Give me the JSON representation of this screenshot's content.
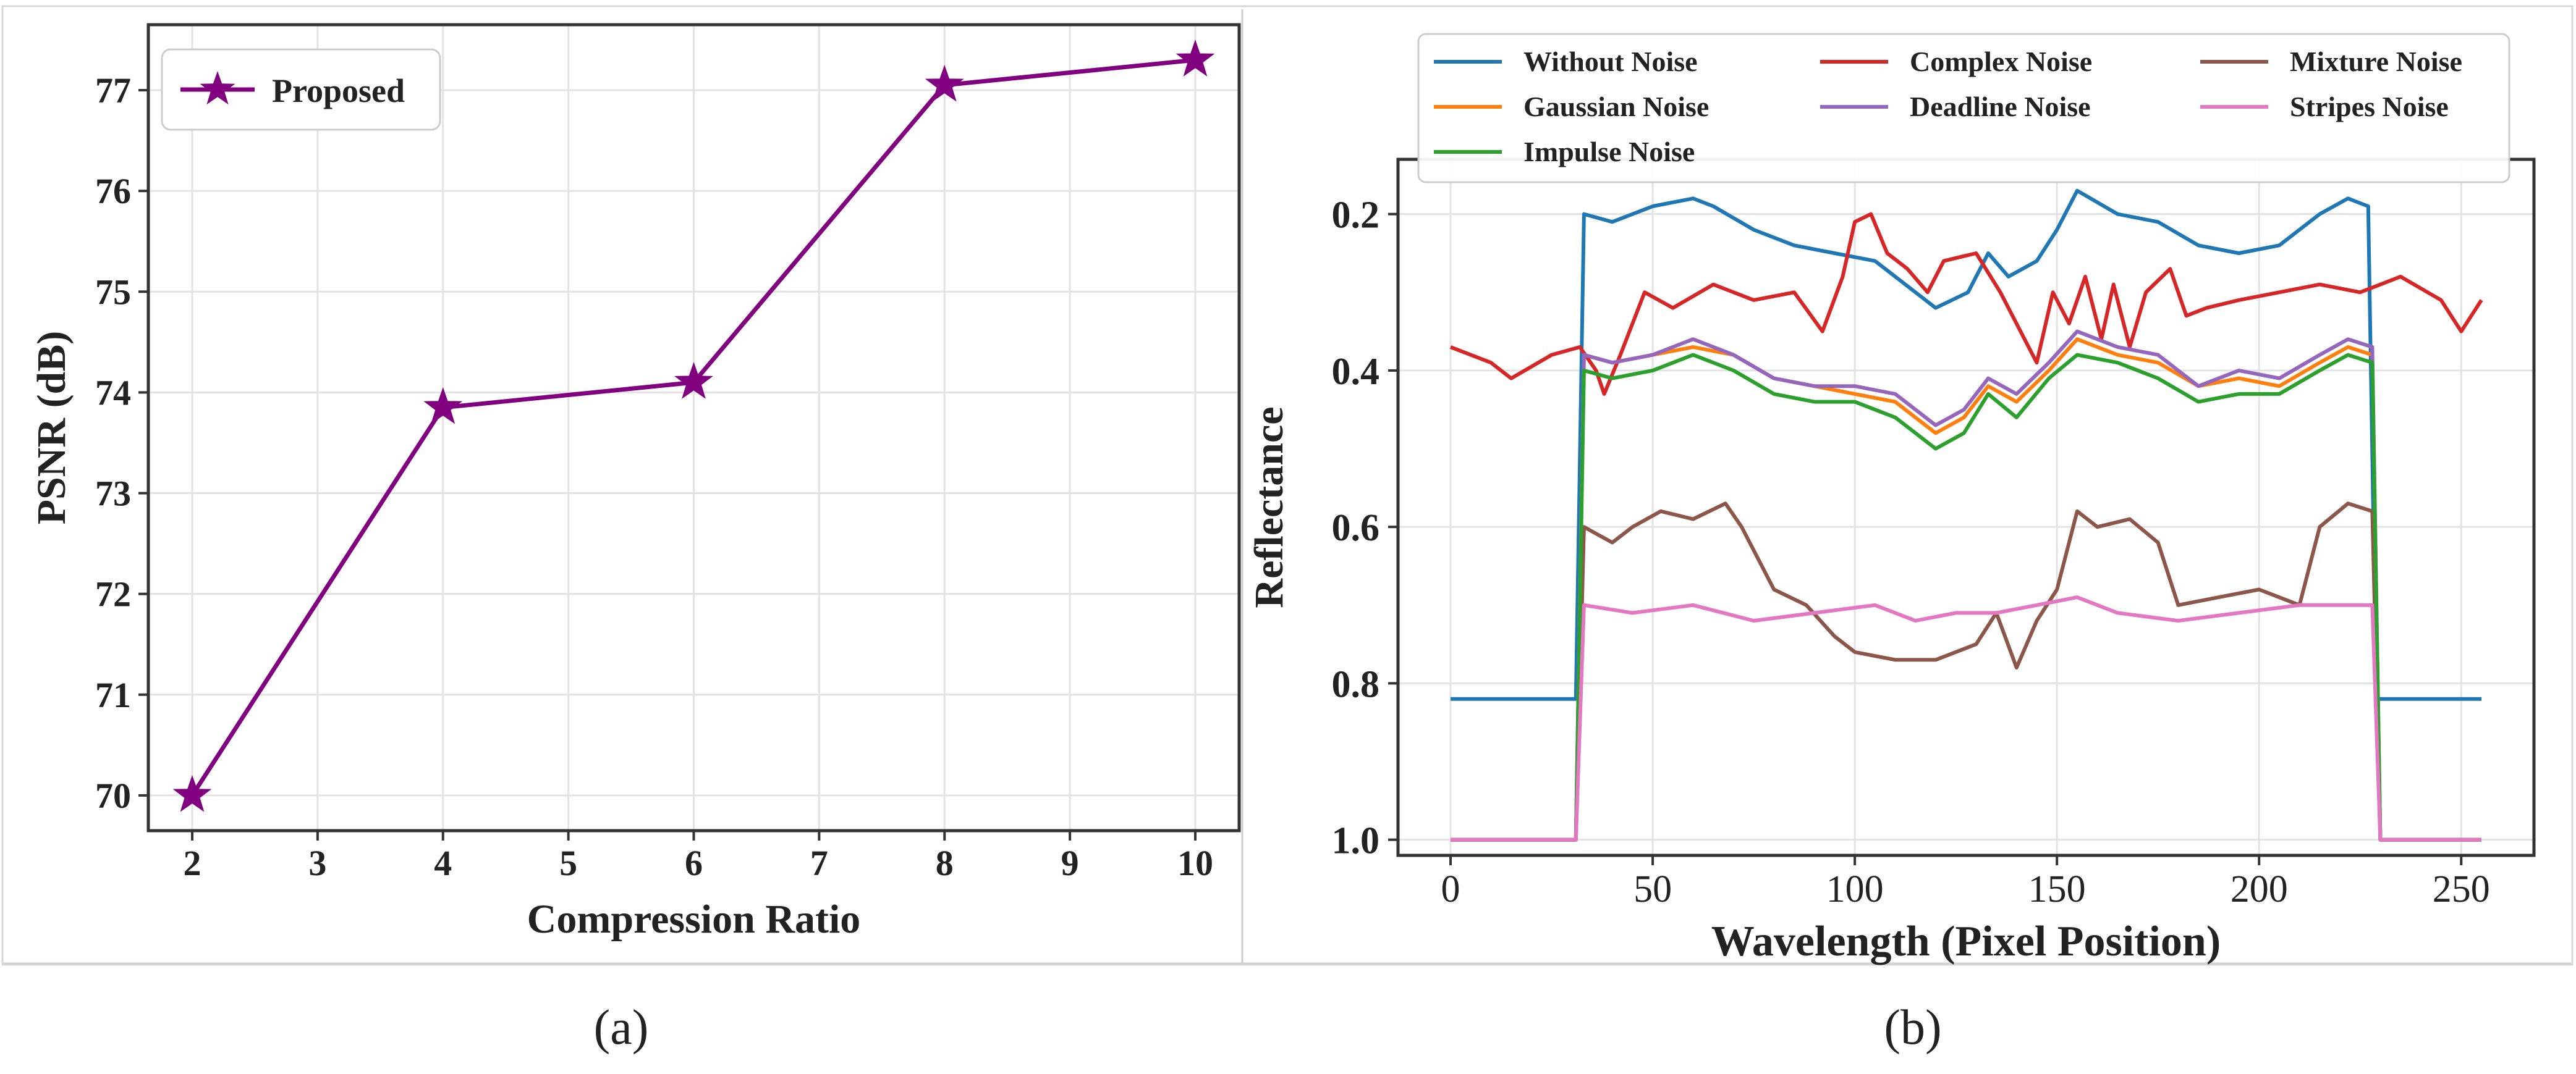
{
  "captions": {
    "a": "(a)",
    "b": "(b)"
  },
  "chart_data": [
    {
      "type": "line",
      "title": "",
      "xlabel": "Compression Ratio",
      "ylabel": "PSNR (dB)",
      "xlim": [
        1.65,
        10.35
      ],
      "ylim": [
        69.65,
        77.65
      ],
      "xticks": [
        2,
        3,
        4,
        5,
        6,
        7,
        8,
        9,
        10
      ],
      "yticks": [
        70,
        71,
        72,
        73,
        74,
        75,
        76,
        77
      ],
      "grid": true,
      "legend_position": "top-left",
      "series": [
        {
          "name": "Proposed",
          "color": "#800080",
          "marker": "star",
          "x": [
            2,
            4,
            6,
            8,
            10
          ],
          "y": [
            70.0,
            73.85,
            74.1,
            77.05,
            77.3
          ]
        }
      ]
    },
    {
      "type": "line",
      "title": "",
      "xlabel": "Wavelength (Pixel Position)",
      "ylabel": "Reflectance",
      "xlim": [
        -13,
        268
      ],
      "ylim": [
        1.02,
        0.13
      ],
      "y_inverted": true,
      "xticks": [
        0,
        50,
        100,
        150,
        200,
        250
      ],
      "yticks": [
        0.2,
        0.4,
        0.6,
        0.8,
        1.0
      ],
      "ytick_labels": [
        "0.2",
        "0.4",
        "0.6",
        "0.8",
        "1.0"
      ],
      "grid": true,
      "legend_position": "top (outside, 3 columns)",
      "series": [
        {
          "name": "Without Noise",
          "color": "#1f77b4",
          "points": [
            [
              0,
              0.82
            ],
            [
              30,
              0.82
            ],
            [
              31,
              0.82
            ],
            [
              33,
              0.2
            ],
            [
              40,
              0.21
            ],
            [
              50,
              0.19
            ],
            [
              60,
              0.18
            ],
            [
              65,
              0.19
            ],
            [
              75,
              0.22
            ],
            [
              85,
              0.24
            ],
            [
              95,
              0.25
            ],
            [
              105,
              0.26
            ],
            [
              115,
              0.3
            ],
            [
              120,
              0.32
            ],
            [
              128,
              0.3
            ],
            [
              133,
              0.25
            ],
            [
              138,
              0.28
            ],
            [
              145,
              0.26
            ],
            [
              150,
              0.22
            ],
            [
              155,
              0.17
            ],
            [
              165,
              0.2
            ],
            [
              175,
              0.21
            ],
            [
              185,
              0.24
            ],
            [
              195,
              0.25
            ],
            [
              205,
              0.24
            ],
            [
              215,
              0.2
            ],
            [
              222,
              0.18
            ],
            [
              227,
              0.19
            ],
            [
              229,
              0.82
            ],
            [
              255,
              0.82
            ]
          ]
        },
        {
          "name": "Complex Noise",
          "color": "#d62728",
          "points": [
            [
              0,
              0.37
            ],
            [
              10,
              0.39
            ],
            [
              15,
              0.41
            ],
            [
              25,
              0.38
            ],
            [
              32,
              0.37
            ],
            [
              36,
              0.4
            ],
            [
              38,
              0.43
            ],
            [
              42,
              0.38
            ],
            [
              48,
              0.3
            ],
            [
              55,
              0.32
            ],
            [
              65,
              0.29
            ],
            [
              75,
              0.31
            ],
            [
              85,
              0.3
            ],
            [
              92,
              0.35
            ],
            [
              97,
              0.28
            ],
            [
              100,
              0.21
            ],
            [
              104,
              0.2
            ],
            [
              108,
              0.25
            ],
            [
              113,
              0.27
            ],
            [
              118,
              0.3
            ],
            [
              122,
              0.26
            ],
            [
              130,
              0.25
            ],
            [
              136,
              0.3
            ],
            [
              142,
              0.36
            ],
            [
              145,
              0.39
            ],
            [
              149,
              0.3
            ],
            [
              153,
              0.34
            ],
            [
              157,
              0.28
            ],
            [
              161,
              0.36
            ],
            [
              164,
              0.29
            ],
            [
              168,
              0.37
            ],
            [
              172,
              0.3
            ],
            [
              178,
              0.27
            ],
            [
              182,
              0.33
            ],
            [
              187,
              0.32
            ],
            [
              195,
              0.31
            ],
            [
              205,
              0.3
            ],
            [
              215,
              0.29
            ],
            [
              225,
              0.3
            ],
            [
              235,
              0.28
            ],
            [
              245,
              0.31
            ],
            [
              250,
              0.35
            ],
            [
              255,
              0.31
            ]
          ]
        },
        {
          "name": "Mixture Noise",
          "color": "#8c564b",
          "points": [
            [
              0,
              1.0
            ],
            [
              30,
              1.0
            ],
            [
              31,
              1.0
            ],
            [
              33,
              0.6
            ],
            [
              40,
              0.62
            ],
            [
              45,
              0.6
            ],
            [
              52,
              0.58
            ],
            [
              60,
              0.59
            ],
            [
              68,
              0.57
            ],
            [
              72,
              0.6
            ],
            [
              80,
              0.68
            ],
            [
              88,
              0.7
            ],
            [
              95,
              0.74
            ],
            [
              100,
              0.76
            ],
            [
              110,
              0.77
            ],
            [
              120,
              0.77
            ],
            [
              130,
              0.75
            ],
            [
              135,
              0.71
            ],
            [
              140,
              0.78
            ],
            [
              145,
              0.72
            ],
            [
              150,
              0.68
            ],
            [
              155,
              0.58
            ],
            [
              160,
              0.6
            ],
            [
              168,
              0.59
            ],
            [
              175,
              0.62
            ],
            [
              180,
              0.7
            ],
            [
              190,
              0.69
            ],
            [
              200,
              0.68
            ],
            [
              210,
              0.7
            ],
            [
              215,
              0.6
            ],
            [
              222,
              0.57
            ],
            [
              228,
              0.58
            ],
            [
              230,
              1.0
            ],
            [
              255,
              1.0
            ]
          ]
        },
        {
          "name": "Gaussian Noise",
          "color": "#ff7f0e",
          "points": [
            [
              0,
              1.0
            ],
            [
              30,
              1.0
            ],
            [
              31,
              1.0
            ],
            [
              33,
              0.38
            ],
            [
              40,
              0.39
            ],
            [
              50,
              0.38
            ],
            [
              60,
              0.37
            ],
            [
              70,
              0.38
            ],
            [
              80,
              0.41
            ],
            [
              90,
              0.42
            ],
            [
              100,
              0.43
            ],
            [
              110,
              0.44
            ],
            [
              120,
              0.48
            ],
            [
              127,
              0.46
            ],
            [
              133,
              0.42
            ],
            [
              140,
              0.44
            ],
            [
              148,
              0.4
            ],
            [
              155,
              0.36
            ],
            [
              165,
              0.38
            ],
            [
              175,
              0.39
            ],
            [
              185,
              0.42
            ],
            [
              195,
              0.41
            ],
            [
              205,
              0.42
            ],
            [
              215,
              0.39
            ],
            [
              222,
              0.37
            ],
            [
              228,
              0.38
            ],
            [
              230,
              1.0
            ],
            [
              255,
              1.0
            ]
          ]
        },
        {
          "name": "Deadline Noise",
          "color": "#9467bd",
          "points": [
            [
              0,
              1.0
            ],
            [
              30,
              1.0
            ],
            [
              31,
              1.0
            ],
            [
              33,
              0.38
            ],
            [
              40,
              0.39
            ],
            [
              50,
              0.38
            ],
            [
              60,
              0.36
            ],
            [
              70,
              0.38
            ],
            [
              80,
              0.41
            ],
            [
              90,
              0.42
            ],
            [
              100,
              0.42
            ],
            [
              110,
              0.43
            ],
            [
              120,
              0.47
            ],
            [
              127,
              0.45
            ],
            [
              133,
              0.41
            ],
            [
              140,
              0.43
            ],
            [
              148,
              0.39
            ],
            [
              155,
              0.35
            ],
            [
              165,
              0.37
            ],
            [
              175,
              0.38
            ],
            [
              185,
              0.42
            ],
            [
              195,
              0.4
            ],
            [
              205,
              0.41
            ],
            [
              215,
              0.38
            ],
            [
              222,
              0.36
            ],
            [
              228,
              0.37
            ],
            [
              230,
              1.0
            ],
            [
              255,
              1.0
            ]
          ]
        },
        {
          "name": "Impulse Noise",
          "color": "#2ca02c",
          "points": [
            [
              0,
              1.0
            ],
            [
              30,
              1.0
            ],
            [
              31,
              1.0
            ],
            [
              33,
              0.4
            ],
            [
              40,
              0.41
            ],
            [
              50,
              0.4
            ],
            [
              60,
              0.38
            ],
            [
              70,
              0.4
            ],
            [
              80,
              0.43
            ],
            [
              90,
              0.44
            ],
            [
              100,
              0.44
            ],
            [
              110,
              0.46
            ],
            [
              120,
              0.5
            ],
            [
              127,
              0.48
            ],
            [
              133,
              0.43
            ],
            [
              140,
              0.46
            ],
            [
              148,
              0.41
            ],
            [
              155,
              0.38
            ],
            [
              165,
              0.39
            ],
            [
              175,
              0.41
            ],
            [
              185,
              0.44
            ],
            [
              195,
              0.43
            ],
            [
              205,
              0.43
            ],
            [
              215,
              0.4
            ],
            [
              222,
              0.38
            ],
            [
              228,
              0.39
            ],
            [
              230,
              1.0
            ],
            [
              255,
              1.0
            ]
          ]
        },
        {
          "name": "Stripes Noise",
          "color": "#e377c2",
          "points": [
            [
              0,
              1.0
            ],
            [
              30,
              1.0
            ],
            [
              31,
              1.0
            ],
            [
              33,
              0.7
            ],
            [
              45,
              0.71
            ],
            [
              60,
              0.7
            ],
            [
              75,
              0.72
            ],
            [
              90,
              0.71
            ],
            [
              105,
              0.7
            ],
            [
              115,
              0.72
            ],
            [
              125,
              0.71
            ],
            [
              135,
              0.71
            ],
            [
              145,
              0.7
            ],
            [
              155,
              0.69
            ],
            [
              165,
              0.71
            ],
            [
              180,
              0.72
            ],
            [
              195,
              0.71
            ],
            [
              210,
              0.7
            ],
            [
              228,
              0.7
            ],
            [
              230,
              1.0
            ],
            [
              255,
              1.0
            ]
          ]
        }
      ],
      "legend_order": [
        "Without Noise",
        "Complex Noise",
        "Mixture Noise",
        "Gaussian Noise",
        "Deadline Noise",
        "Stripes Noise",
        "Impulse Noise"
      ]
    }
  ]
}
